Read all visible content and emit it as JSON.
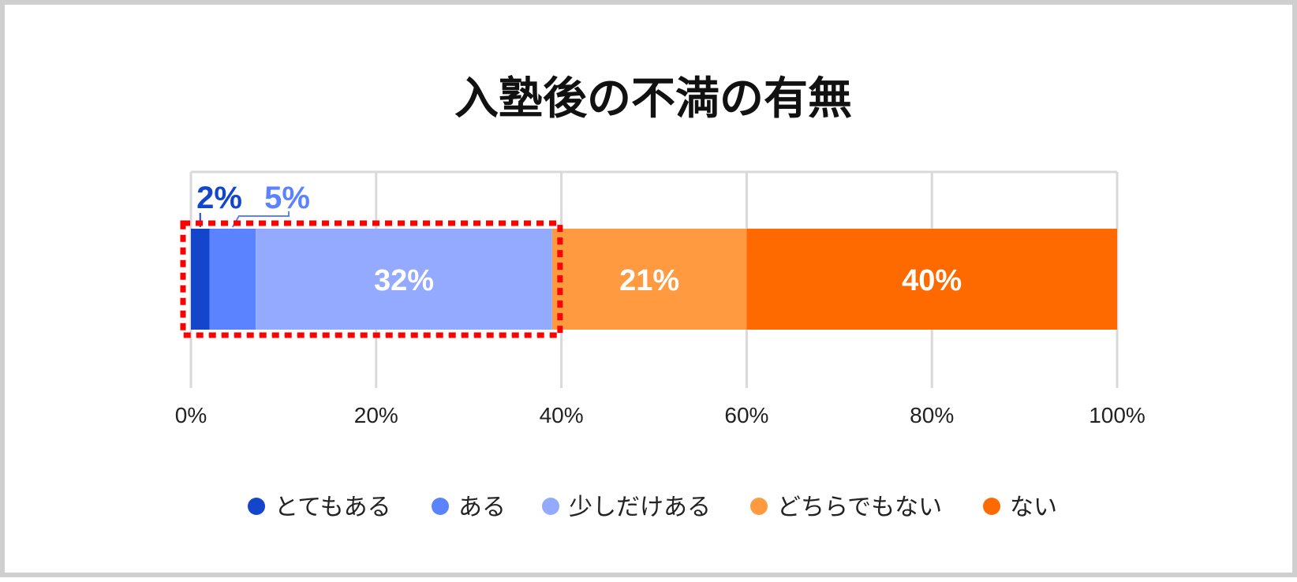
{
  "chart_data": {
    "type": "bar",
    "orientation": "horizontal",
    "stacked": true,
    "title": "入塾後の不満の有無",
    "xlabel": "",
    "ylabel": "",
    "xlim": [
      0,
      100
    ],
    "x_ticks": [
      "0%",
      "20%",
      "40%",
      "60%",
      "80%",
      "100%"
    ],
    "grid": true,
    "legend_position": "bottom",
    "series": [
      {
        "name": "とてもある",
        "values": [
          2
        ],
        "label": "2%",
        "color": "#1446cc",
        "label_color": "#1446cc"
      },
      {
        "name": "ある",
        "values": [
          5
        ],
        "label": "5%",
        "color": "#5b82ff",
        "label_color": "#5b82ff"
      },
      {
        "name": "少しだけある",
        "values": [
          32
        ],
        "label": "32%",
        "color": "#93aaff",
        "label_color": "#ffffff"
      },
      {
        "name": "どちらでもない",
        "values": [
          21
        ],
        "label": "21%",
        "color": "#ff9a40",
        "label_color": "#ffffff"
      },
      {
        "name": "ない",
        "values": [
          40
        ],
        "label": "40%",
        "color": "#ff6a00",
        "label_color": "#ffffff"
      }
    ],
    "highlight": {
      "from": 0,
      "to": 39,
      "color": "#ff0000",
      "style": "dotted"
    }
  }
}
